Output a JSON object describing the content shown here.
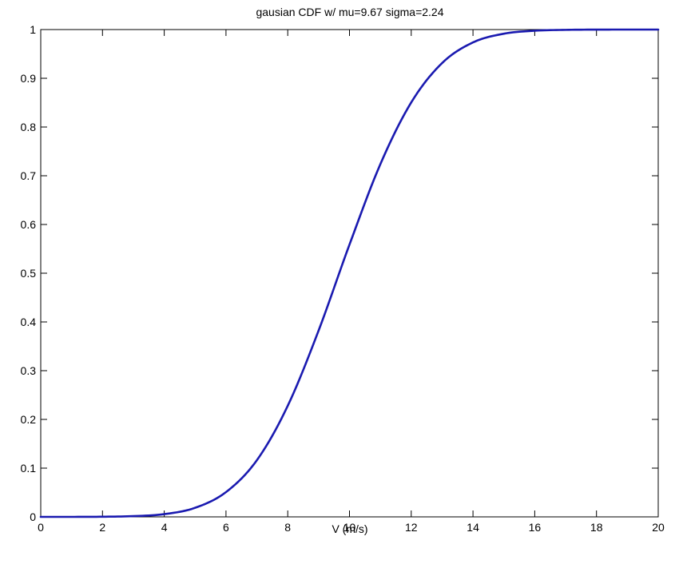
{
  "chart_data": {
    "type": "line",
    "title": "gausian CDF w/ mu=9.67 sigma=2.24",
    "xlabel": "V (m/s)",
    "ylabel": "",
    "xlim": [
      0,
      20
    ],
    "ylim": [
      0,
      1
    ],
    "xticks": [
      0,
      2,
      4,
      6,
      8,
      10,
      12,
      14,
      16,
      18,
      20
    ],
    "xtick_labels": [
      "0",
      "2",
      "4",
      "6",
      "8",
      "10",
      "12",
      "14",
      "16",
      "18",
      "20"
    ],
    "yticks": [
      0,
      0.1,
      0.2,
      0.3,
      0.4,
      0.5,
      0.6,
      0.7,
      0.8,
      0.9,
      1
    ],
    "ytick_labels": [
      "0",
      "0.1",
      "0.2",
      "0.3",
      "0.4",
      "0.5",
      "0.6",
      "0.7",
      "0.8",
      "0.9",
      "1"
    ],
    "grid": false,
    "line_color": "#1a1ab0",
    "series": [
      {
        "x": [
          0,
          1,
          2,
          3,
          4,
          5,
          6,
          7,
          8,
          9,
          10,
          11,
          12,
          13,
          14,
          15,
          16,
          17,
          18,
          19,
          20
        ],
        "y": [
          0.0,
          0.0,
          0.0003,
          0.0015,
          0.0056,
          0.0186,
          0.0508,
          0.1162,
          0.2279,
          0.3824,
          0.5587,
          0.7238,
          0.8505,
          0.9313,
          0.9736,
          0.9915,
          0.9976,
          0.9994,
          0.9999,
          1.0,
          1.0
        ]
      }
    ]
  }
}
